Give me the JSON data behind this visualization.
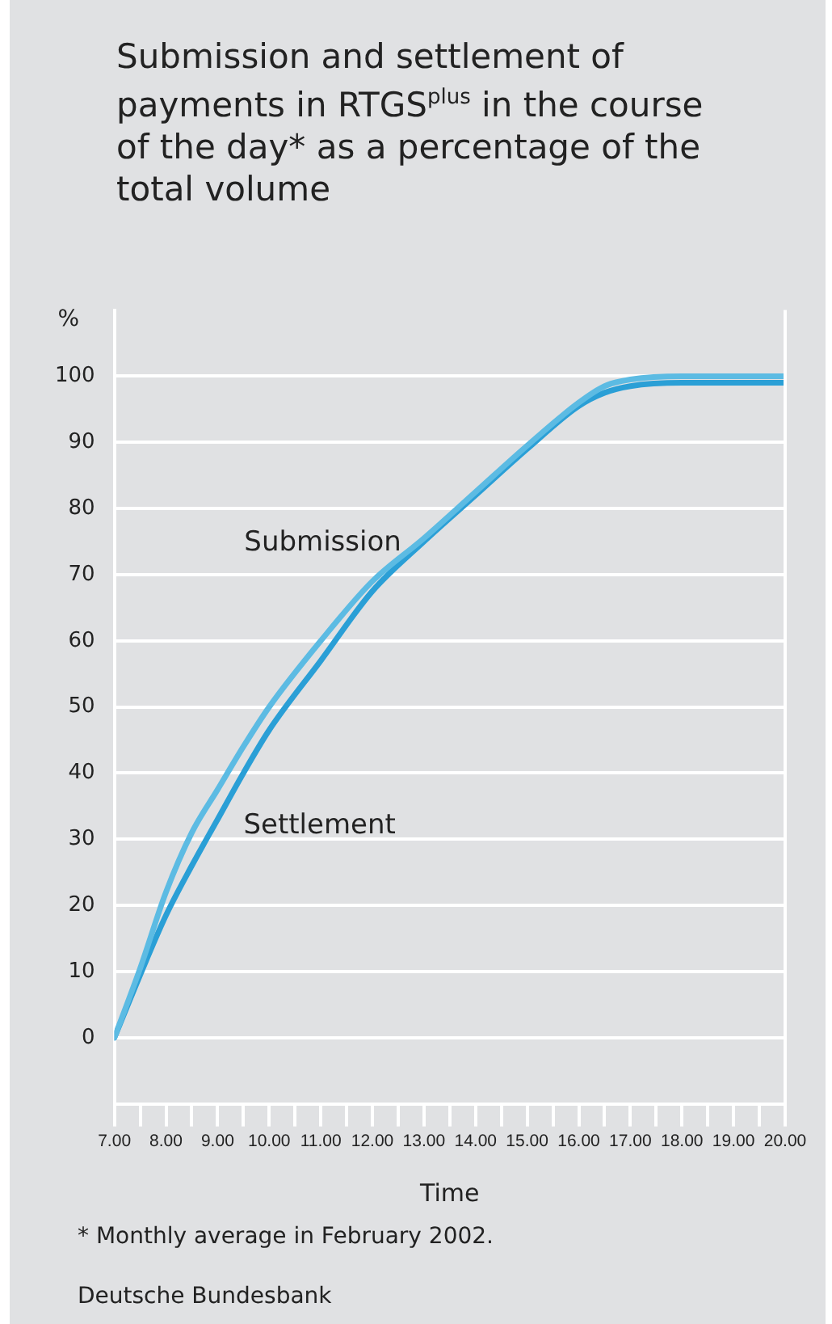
{
  "chart_data": {
    "type": "line",
    "title": "Submission and settlement of payments in RTGS$^{plus}$ in the course of the day* as a percentage of the total volume",
    "xlabel": "Time",
    "ylabel": "%",
    "series": [
      {
        "name": "Submission",
        "color": "#5cbbe3",
        "x": [
          7,
          7.5,
          8,
          8.5,
          9,
          9.5,
          10,
          11,
          12,
          13,
          14,
          15,
          16,
          16.5,
          17,
          18,
          20
        ],
        "values": [
          0,
          10.5,
          22,
          31,
          37.5,
          44,
          50,
          60,
          69,
          75.5,
          82.5,
          89.5,
          96,
          98.5,
          99.5,
          100,
          100
        ]
      },
      {
        "name": "Settlement",
        "color": "#2a9fd6",
        "x": [
          7,
          7.5,
          8,
          8.5,
          9,
          9.5,
          10,
          11,
          12,
          13,
          14,
          15,
          16,
          16.5,
          17,
          18,
          20
        ],
        "values": [
          0,
          9.5,
          18.5,
          26,
          33,
          40,
          46.5,
          57,
          67.5,
          75,
          82,
          89,
          95.5,
          97.5,
          98.5,
          99,
          99
        ]
      }
    ],
    "xlim": [
      7,
      20
    ],
    "xticks": [
      {
        "value": 7,
        "label": "7.00"
      },
      {
        "value": 7.5,
        "label": null
      },
      {
        "value": 8,
        "label": "8.00"
      },
      {
        "value": 8.5,
        "label": null
      },
      {
        "value": 9,
        "label": "9.00"
      },
      {
        "value": 9.5,
        "label": null
      },
      {
        "value": 10,
        "label": "10.00"
      },
      {
        "value": 10.5,
        "label": null
      },
      {
        "value": 11,
        "label": "11.00"
      },
      {
        "value": 11.5,
        "label": null
      },
      {
        "value": 12,
        "label": "12.00"
      },
      {
        "value": 12.5,
        "label": null
      },
      {
        "value": 13,
        "label": "13.00"
      },
      {
        "value": 13.5,
        "label": null
      },
      {
        "value": 14,
        "label": "14.00"
      },
      {
        "value": 14.5,
        "label": null
      },
      {
        "value": 15,
        "label": "15.00"
      },
      {
        "value": 15.5,
        "label": null
      },
      {
        "value": 16,
        "label": "16.00"
      },
      {
        "value": 16.5,
        "label": null
      },
      {
        "value": 17,
        "label": "17.00"
      },
      {
        "value": 17.5,
        "label": null
      },
      {
        "value": 18,
        "label": "18.00"
      },
      {
        "value": 18.5,
        "label": null
      },
      {
        "value": 19,
        "label": "19.00"
      },
      {
        "value": 19.5,
        "label": null
      },
      {
        "value": 20,
        "label": "20.00"
      }
    ],
    "ylim": [
      -10,
      110
    ],
    "yticks": [
      0,
      10,
      20,
      30,
      40,
      50,
      60,
      70,
      80,
      90,
      100
    ],
    "grid": "y",
    "legend": false,
    "marker": "none",
    "line_style": "solid",
    "annotations": [
      "* Monthly average in February 2002.",
      "Deutsche Bundesbank"
    ]
  }
}
